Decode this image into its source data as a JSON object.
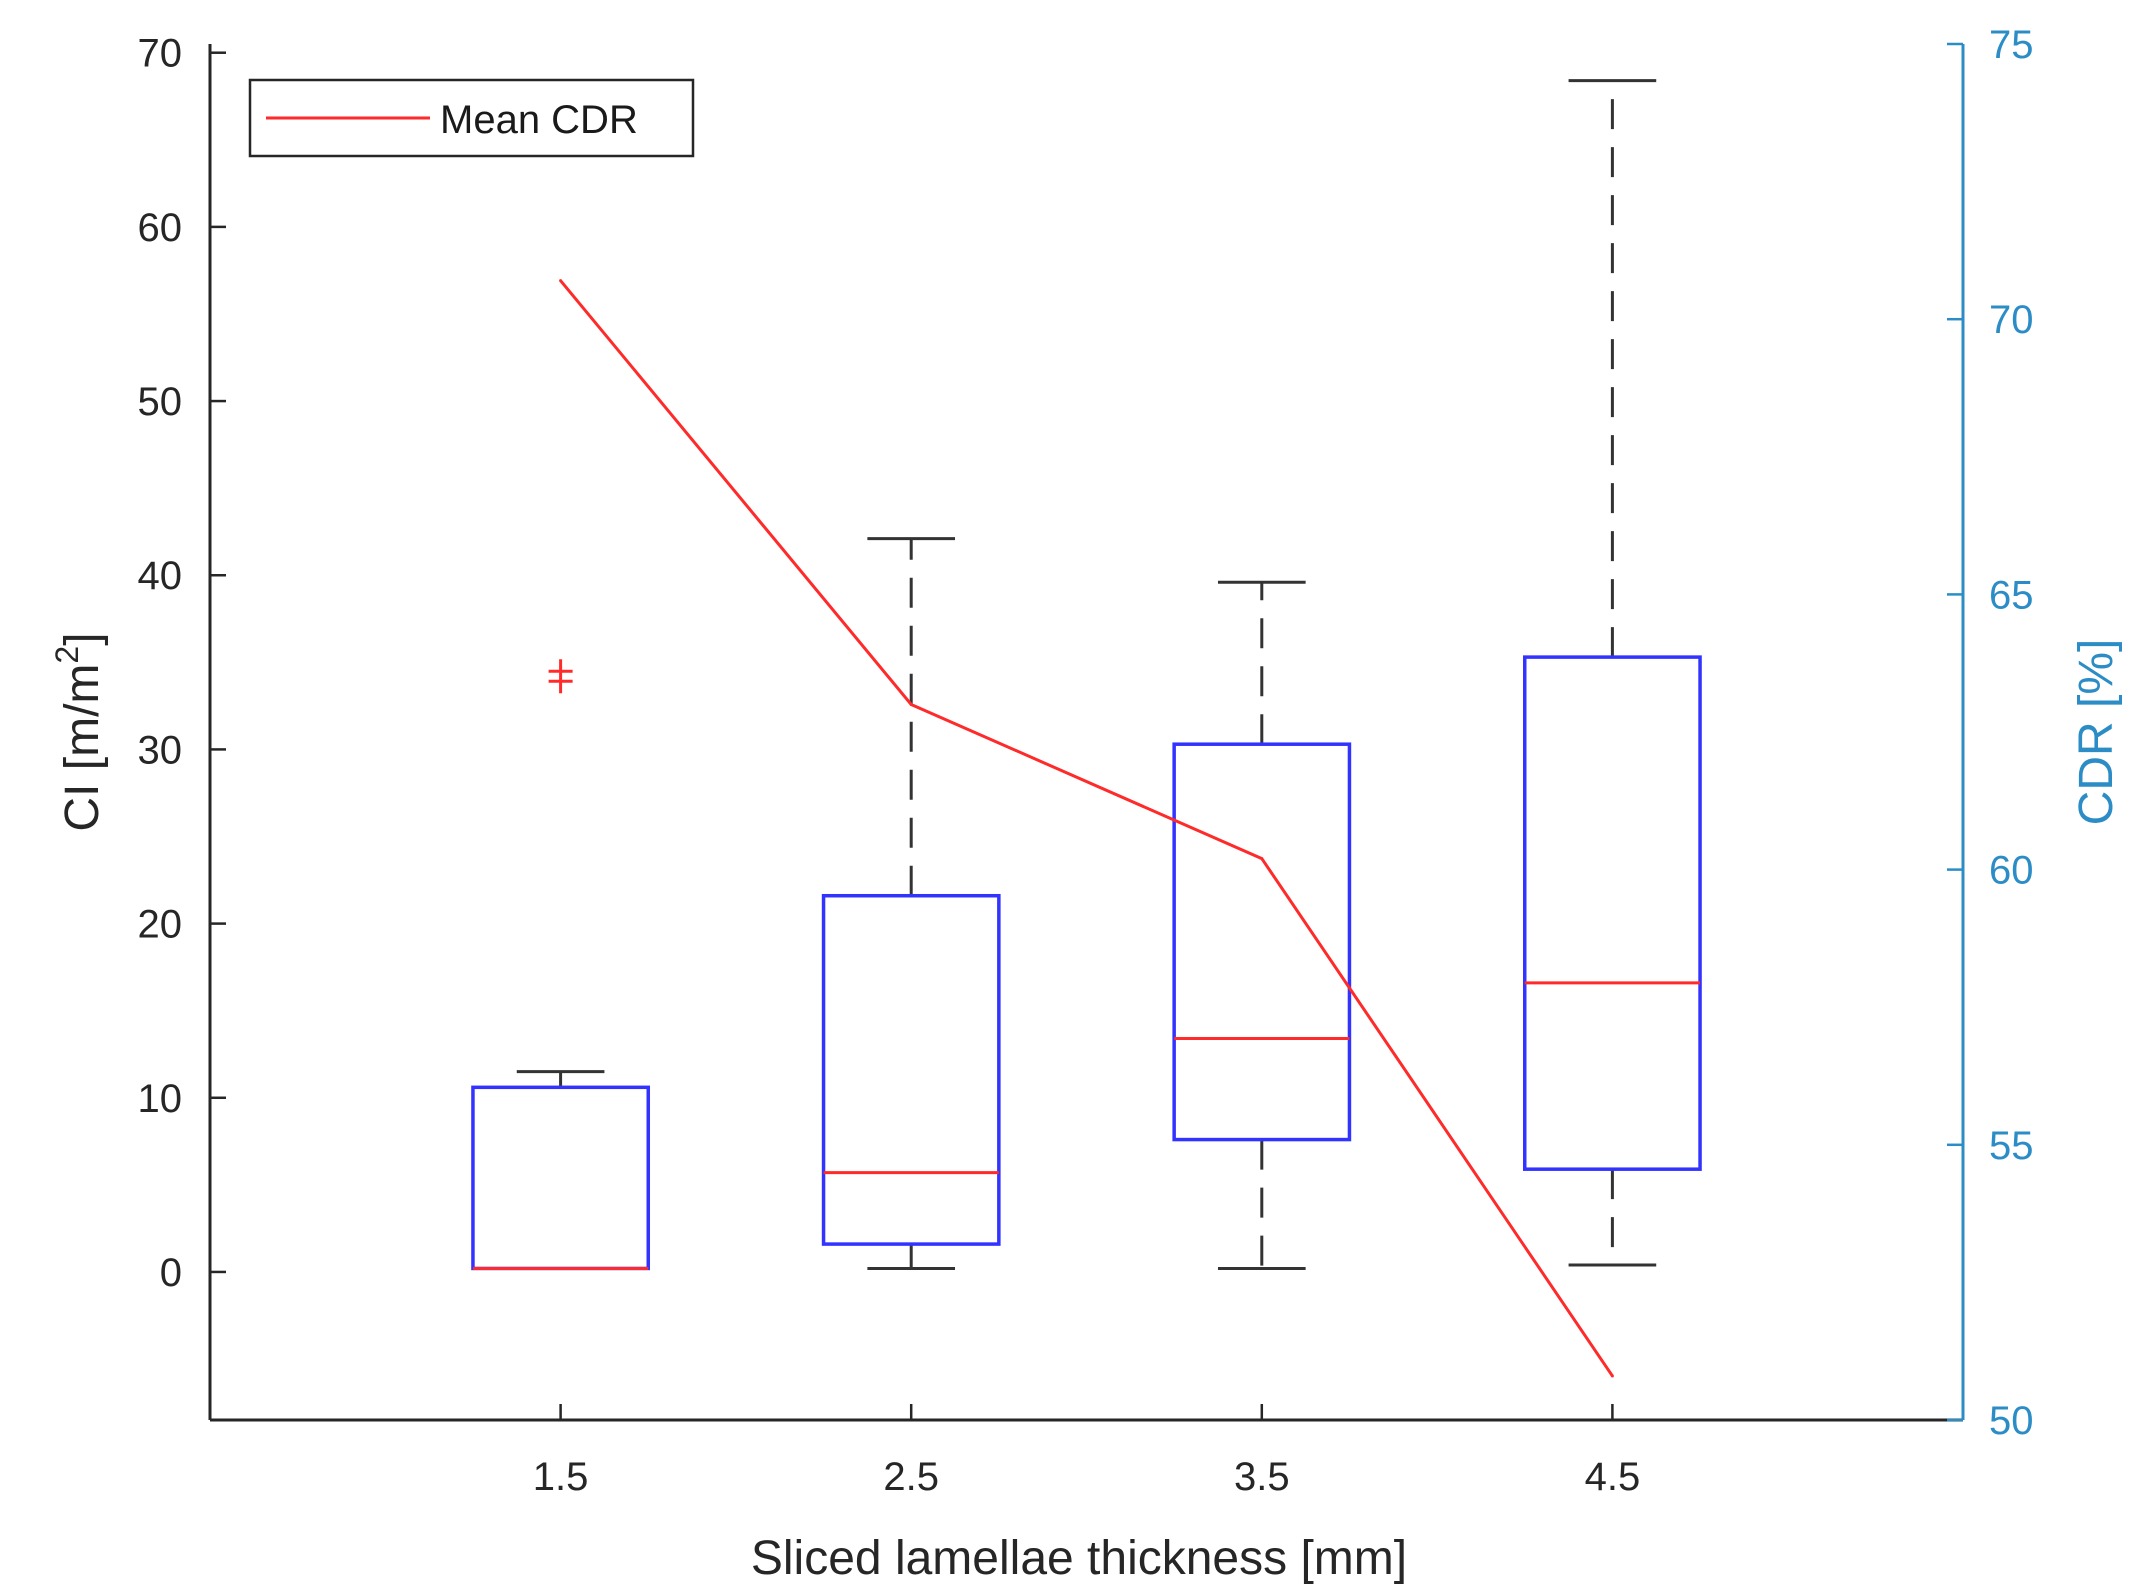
{
  "chart_data": {
    "type": "box",
    "xlabel": "Sliced lamellae thickness [mm]",
    "ylabel_left": "CI [m/m",
    "ylabel_left_sup": "2",
    "ylabel_left_end": "]",
    "ylabel_right": "CDR [%]",
    "categories": [
      "1.5",
      "2.5",
      "3.5",
      "4.5"
    ],
    "y_left_range": [
      -8.5,
      70.5
    ],
    "y_left_ticks": [
      "0",
      "10",
      "20",
      "30",
      "40",
      "50",
      "60",
      "70"
    ],
    "y_right_range": [
      50,
      75
    ],
    "y_right_ticks": [
      "50",
      "55",
      "60",
      "65",
      "70",
      "75"
    ],
    "boxes": [
      {
        "category": "1.5",
        "whisker_low": 0.2,
        "q1": 0.2,
        "median": 0.2,
        "q3": 10.6,
        "whisker_high": 11.5
      },
      {
        "category": "2.5",
        "whisker_low": 0.2,
        "q1": 1.6,
        "median": 5.7,
        "q3": 21.6,
        "whisker_high": 42.1
      },
      {
        "category": "3.5",
        "whisker_low": 0.2,
        "q1": 7.6,
        "median": 13.4,
        "q3": 30.3,
        "whisker_high": 39.6
      },
      {
        "category": "4.5",
        "whisker_low": 0.4,
        "q1": 5.9,
        "median": 16.6,
        "q3": 35.3,
        "whisker_high": 68.4
      }
    ],
    "outliers": [
      {
        "category": "1.5",
        "value": 34.2
      }
    ],
    "series": [
      {
        "name": "Mean CDR",
        "axis": "right",
        "values": [
          70.7,
          63.0,
          60.2,
          50.8
        ]
      }
    ],
    "legend": {
      "entries": [
        "Mean CDR"
      ],
      "position": "top-left"
    },
    "colors": {
      "box": "#3333ff",
      "median": "#ff2a2a",
      "whisker": "#333333",
      "line": "#ff2a2a",
      "right_axis": "#2c8dc6",
      "axis": "#262626"
    }
  }
}
